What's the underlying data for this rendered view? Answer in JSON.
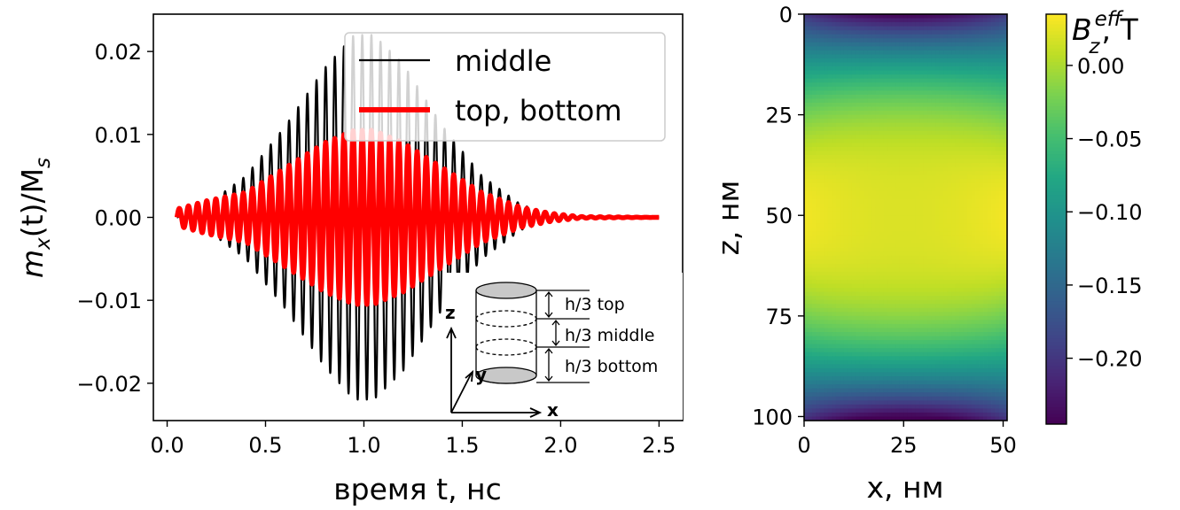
{
  "chart_data": [
    {
      "type": "line",
      "xlabel": "время t, нс",
      "ylabel_base": "m",
      "ylabel_sub": "x",
      "ylabel_mid": "(t)/M",
      "ylabel_sub2": "s",
      "xlim": [
        -0.07,
        2.62
      ],
      "ylim": [
        -0.0245,
        0.0245
      ],
      "xticks": [
        0.0,
        0.5,
        1.0,
        1.5,
        2.0,
        2.5
      ],
      "xtick_labels": [
        "0.0",
        "0.5",
        "1.0",
        "1.5",
        "2.0",
        "2.5"
      ],
      "yticks": [
        -0.02,
        -0.01,
        0.0,
        0.01,
        0.02
      ],
      "ytick_labels": [
        "−0.02",
        "−0.01",
        "0.00",
        "0.01",
        "0.02"
      ],
      "legend_position": "top-right",
      "series": [
        {
          "name": "middle",
          "color": "#000000",
          "x": [
            0.05,
            0.2,
            0.4,
            0.6,
            0.8,
            0.95,
            1.05,
            1.2,
            1.4,
            1.6,
            1.8,
            1.95,
            2.1,
            2.5
          ],
          "amplitude": [
            0.0,
            0.0015,
            0.005,
            0.011,
            0.018,
            0.022,
            0.022,
            0.0185,
            0.011,
            0.005,
            0.0015,
            0.0005,
            0.0,
            0.0
          ]
        },
        {
          "name": "top, bottom",
          "color": "#ff0000",
          "x": [
            0.05,
            0.2,
            0.4,
            0.6,
            0.8,
            0.95,
            1.05,
            1.2,
            1.4,
            1.6,
            1.8,
            1.95,
            2.1,
            2.5
          ],
          "amplitude": [
            0.001,
            0.002,
            0.003,
            0.006,
            0.009,
            0.0105,
            0.0105,
            0.009,
            0.006,
            0.003,
            0.0012,
            0.0005,
            0.0001,
            0.0
          ]
        }
      ],
      "oscillation_period_ns": 0.0465,
      "inset": {
        "labels": [
          "h/3 top",
          "h/3 middle",
          "h/3 bottom"
        ],
        "axes": [
          "z",
          "y",
          "x"
        ]
      }
    },
    {
      "type": "heatmap",
      "xlabel": "x, нм",
      "ylabel": "z, нм",
      "xlim": [
        0,
        51
      ],
      "ylim": [
        101,
        0
      ],
      "xticks": [
        0,
        25,
        50
      ],
      "xtick_labels": [
        "0",
        "25",
        "50"
      ],
      "yticks": [
        0,
        25,
        50,
        75,
        100
      ],
      "ytick_labels": [
        "0",
        "25",
        "50",
        "75",
        "100"
      ],
      "colormap": "viridis",
      "colorbar": {
        "label_base": "B",
        "label_sup": "eff",
        "label_sub": "z",
        "label_unit": ", T",
        "range": [
          -0.245,
          0.035
        ],
        "ticks": [
          0.0,
          -0.05,
          -0.1,
          -0.15,
          -0.2
        ],
        "tick_labels": [
          "0.00",
          "−0.05",
          "−0.10",
          "−0.15",
          "−0.20"
        ]
      },
      "field_summary": {
        "center": 0.02,
        "side_mid": 0.03,
        "top_bottom_center": -0.245,
        "top_bottom_corner": -0.2
      }
    }
  ]
}
